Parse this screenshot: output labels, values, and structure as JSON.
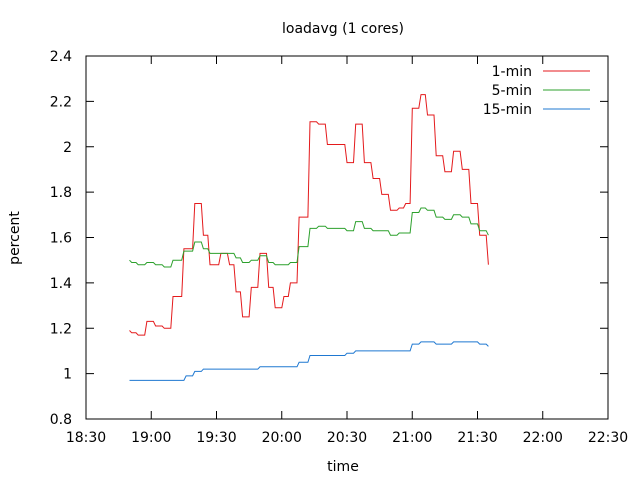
{
  "chart_data": {
    "type": "line",
    "title": "loadavg (1 cores)",
    "xlabel": "time",
    "ylabel": "percent",
    "xlim": [
      1110,
      1350
    ],
    "ylim": [
      0.8,
      2.4
    ],
    "x_ticks": [
      {
        "v": 1110,
        "label": "18:30"
      },
      {
        "v": 1140,
        "label": "19:00"
      },
      {
        "v": 1170,
        "label": "19:30"
      },
      {
        "v": 1200,
        "label": "20:00"
      },
      {
        "v": 1230,
        "label": "20:30"
      },
      {
        "v": 1260,
        "label": "21:00"
      },
      {
        "v": 1290,
        "label": "21:30"
      },
      {
        "v": 1320,
        "label": "22:00"
      },
      {
        "v": 1350,
        "label": "22:30"
      }
    ],
    "y_ticks": [
      0.8,
      1,
      1.2,
      1.4,
      1.6,
      1.8,
      2,
      2.2,
      2.4
    ],
    "legend_position": "top-right",
    "series": [
      {
        "name": "1-min",
        "color": "#e41a1c",
        "points": [
          [
            1130,
            1.19
          ],
          [
            1131,
            1.18
          ],
          [
            1133,
            1.18
          ],
          [
            1134,
            1.17
          ],
          [
            1137,
            1.17
          ],
          [
            1138,
            1.23
          ],
          [
            1141,
            1.23
          ],
          [
            1142,
            1.21
          ],
          [
            1145,
            1.21
          ],
          [
            1146,
            1.2
          ],
          [
            1149,
            1.2
          ],
          [
            1150,
            1.34
          ],
          [
            1154,
            1.34
          ],
          [
            1155,
            1.55
          ],
          [
            1159,
            1.55
          ],
          [
            1160,
            1.75
          ],
          [
            1163,
            1.75
          ],
          [
            1164,
            1.61
          ],
          [
            1166,
            1.61
          ],
          [
            1167,
            1.48
          ],
          [
            1171,
            1.48
          ],
          [
            1172,
            1.53
          ],
          [
            1175,
            1.53
          ],
          [
            1176,
            1.48
          ],
          [
            1178,
            1.48
          ],
          [
            1179,
            1.36
          ],
          [
            1181,
            1.36
          ],
          [
            1182,
            1.25
          ],
          [
            1185,
            1.25
          ],
          [
            1186,
            1.38
          ],
          [
            1189,
            1.38
          ],
          [
            1190,
            1.53
          ],
          [
            1193,
            1.53
          ],
          [
            1194,
            1.38
          ],
          [
            1196,
            1.38
          ],
          [
            1197,
            1.29
          ],
          [
            1200,
            1.29
          ],
          [
            1201,
            1.34
          ],
          [
            1203,
            1.34
          ],
          [
            1204,
            1.4
          ],
          [
            1207,
            1.4
          ],
          [
            1208,
            1.69
          ],
          [
            1212,
            1.69
          ],
          [
            1213,
            2.11
          ],
          [
            1216,
            2.11
          ],
          [
            1217,
            2.1
          ],
          [
            1220,
            2.1
          ],
          [
            1221,
            2.01
          ],
          [
            1229,
            2.01
          ],
          [
            1230,
            1.93
          ],
          [
            1233,
            1.93
          ],
          [
            1234,
            2.1
          ],
          [
            1237,
            2.1
          ],
          [
            1238,
            1.93
          ],
          [
            1241,
            1.93
          ],
          [
            1242,
            1.86
          ],
          [
            1245,
            1.86
          ],
          [
            1246,
            1.79
          ],
          [
            1249,
            1.79
          ],
          [
            1250,
            1.72
          ],
          [
            1253,
            1.72
          ],
          [
            1254,
            1.73
          ],
          [
            1256,
            1.73
          ],
          [
            1257,
            1.75
          ],
          [
            1259,
            1.75
          ],
          [
            1260,
            2.17
          ],
          [
            1263,
            2.17
          ],
          [
            1264,
            2.23
          ],
          [
            1266,
            2.23
          ],
          [
            1267,
            2.14
          ],
          [
            1270,
            2.14
          ],
          [
            1271,
            1.96
          ],
          [
            1274,
            1.96
          ],
          [
            1275,
            1.89
          ],
          [
            1278,
            1.89
          ],
          [
            1279,
            1.98
          ],
          [
            1282,
            1.98
          ],
          [
            1283,
            1.9
          ],
          [
            1286,
            1.9
          ],
          [
            1287,
            1.75
          ],
          [
            1290,
            1.75
          ],
          [
            1291,
            1.61
          ],
          [
            1294,
            1.61
          ],
          [
            1295,
            1.48
          ]
        ]
      },
      {
        "name": "5-min",
        "color": "#2ca02c",
        "points": [
          [
            1130,
            1.5
          ],
          [
            1131,
            1.49
          ],
          [
            1133,
            1.49
          ],
          [
            1134,
            1.48
          ],
          [
            1137,
            1.48
          ],
          [
            1138,
            1.49
          ],
          [
            1141,
            1.49
          ],
          [
            1142,
            1.48
          ],
          [
            1145,
            1.48
          ],
          [
            1146,
            1.47
          ],
          [
            1149,
            1.47
          ],
          [
            1150,
            1.5
          ],
          [
            1154,
            1.5
          ],
          [
            1155,
            1.54
          ],
          [
            1159,
            1.54
          ],
          [
            1160,
            1.58
          ],
          [
            1163,
            1.58
          ],
          [
            1164,
            1.55
          ],
          [
            1166,
            1.55
          ],
          [
            1167,
            1.53
          ],
          [
            1174,
            1.53
          ],
          [
            1175,
            1.53
          ],
          [
            1178,
            1.53
          ],
          [
            1179,
            1.51
          ],
          [
            1181,
            1.51
          ],
          [
            1182,
            1.49
          ],
          [
            1185,
            1.49
          ],
          [
            1186,
            1.5
          ],
          [
            1189,
            1.5
          ],
          [
            1190,
            1.52
          ],
          [
            1193,
            1.52
          ],
          [
            1194,
            1.49
          ],
          [
            1196,
            1.49
          ],
          [
            1197,
            1.48
          ],
          [
            1203,
            1.48
          ],
          [
            1204,
            1.49
          ],
          [
            1207,
            1.49
          ],
          [
            1208,
            1.56
          ],
          [
            1212,
            1.56
          ],
          [
            1213,
            1.64
          ],
          [
            1216,
            1.64
          ],
          [
            1217,
            1.65
          ],
          [
            1220,
            1.65
          ],
          [
            1221,
            1.64
          ],
          [
            1229,
            1.64
          ],
          [
            1230,
            1.63
          ],
          [
            1233,
            1.63
          ],
          [
            1234,
            1.67
          ],
          [
            1237,
            1.67
          ],
          [
            1238,
            1.64
          ],
          [
            1241,
            1.64
          ],
          [
            1242,
            1.63
          ],
          [
            1249,
            1.63
          ],
          [
            1250,
            1.61
          ],
          [
            1253,
            1.61
          ],
          [
            1254,
            1.62
          ],
          [
            1259,
            1.62
          ],
          [
            1260,
            1.71
          ],
          [
            1263,
            1.71
          ],
          [
            1264,
            1.73
          ],
          [
            1266,
            1.73
          ],
          [
            1267,
            1.72
          ],
          [
            1270,
            1.72
          ],
          [
            1271,
            1.69
          ],
          [
            1274,
            1.69
          ],
          [
            1275,
            1.68
          ],
          [
            1278,
            1.68
          ],
          [
            1279,
            1.7
          ],
          [
            1282,
            1.7
          ],
          [
            1283,
            1.69
          ],
          [
            1286,
            1.69
          ],
          [
            1287,
            1.66
          ],
          [
            1290,
            1.66
          ],
          [
            1291,
            1.63
          ],
          [
            1294,
            1.63
          ],
          [
            1295,
            1.61
          ]
        ]
      },
      {
        "name": "15-min",
        "color": "#1f78d1",
        "points": [
          [
            1130,
            0.97
          ],
          [
            1155,
            0.97
          ],
          [
            1156,
            0.99
          ],
          [
            1159,
            0.99
          ],
          [
            1160,
            1.01
          ],
          [
            1163,
            1.01
          ],
          [
            1164,
            1.02
          ],
          [
            1189,
            1.02
          ],
          [
            1190,
            1.03
          ],
          [
            1207,
            1.03
          ],
          [
            1208,
            1.05
          ],
          [
            1212,
            1.05
          ],
          [
            1213,
            1.08
          ],
          [
            1229,
            1.08
          ],
          [
            1230,
            1.09
          ],
          [
            1233,
            1.09
          ],
          [
            1234,
            1.1
          ],
          [
            1259,
            1.1
          ],
          [
            1260,
            1.13
          ],
          [
            1263,
            1.13
          ],
          [
            1264,
            1.14
          ],
          [
            1270,
            1.14
          ],
          [
            1271,
            1.13
          ],
          [
            1278,
            1.13
          ],
          [
            1279,
            1.14
          ],
          [
            1290,
            1.14
          ],
          [
            1291,
            1.13
          ],
          [
            1294,
            1.13
          ],
          [
            1295,
            1.12
          ]
        ]
      }
    ]
  }
}
